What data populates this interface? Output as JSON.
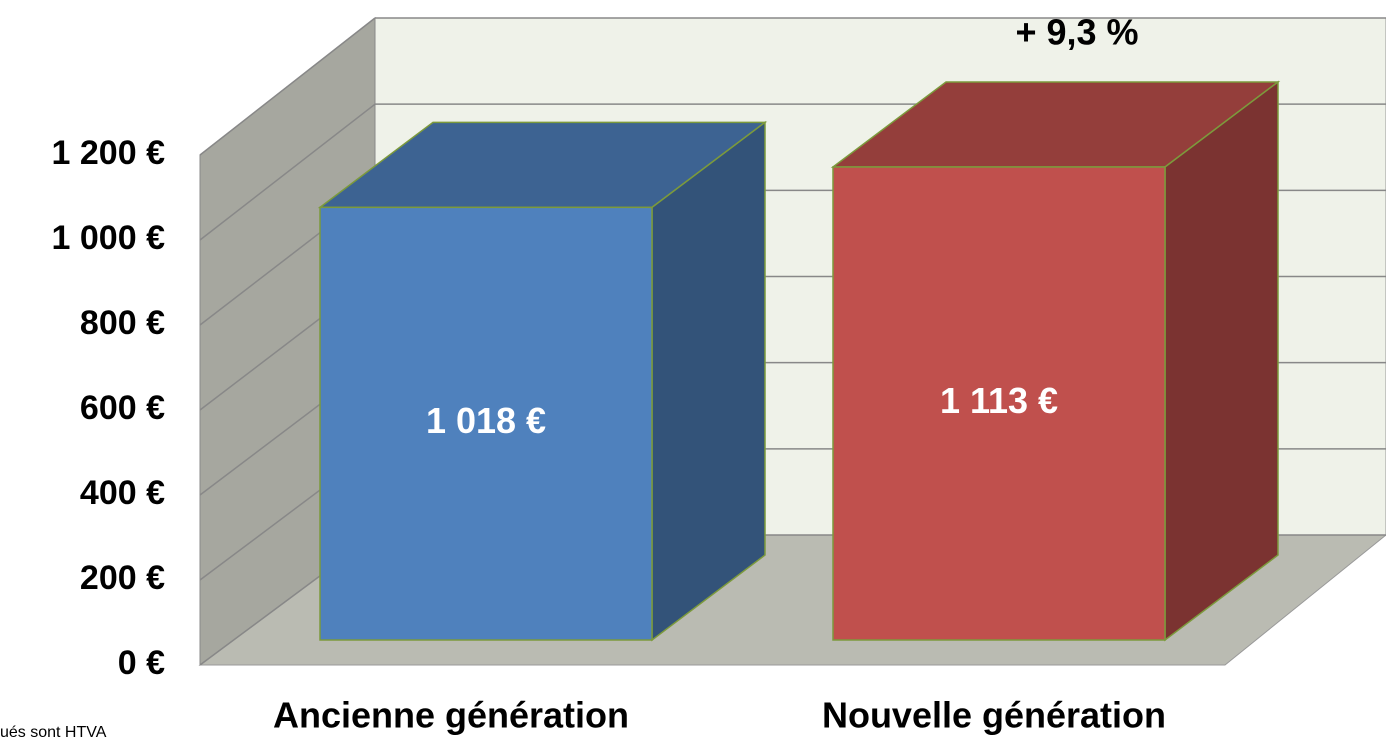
{
  "chart_data": {
    "type": "bar3d",
    "categories": [
      "Ancienne génération",
      "Nouvelle génération"
    ],
    "series": [
      {
        "values": [
          1018,
          1113
        ],
        "value_labels": [
          "1 018 €",
          "1 113 €"
        ],
        "colors": [
          "#4f81bd",
          "#c0504d"
        ]
      }
    ],
    "ylim": [
      0,
      1200
    ],
    "yticks": [
      {
        "value": 0,
        "label": "0 €"
      },
      {
        "value": 200,
        "label": "200 €"
      },
      {
        "value": 400,
        "label": "400 €"
      },
      {
        "value": 600,
        "label": "600 €"
      },
      {
        "value": 800,
        "label": "800 €"
      },
      {
        "value": 1000,
        "label": "1 000 €"
      },
      {
        "value": 1200,
        "label": "1 200 €"
      }
    ],
    "grid": true,
    "annotation": "+ 9,3 %",
    "footnote": "ués sont HTVA"
  }
}
